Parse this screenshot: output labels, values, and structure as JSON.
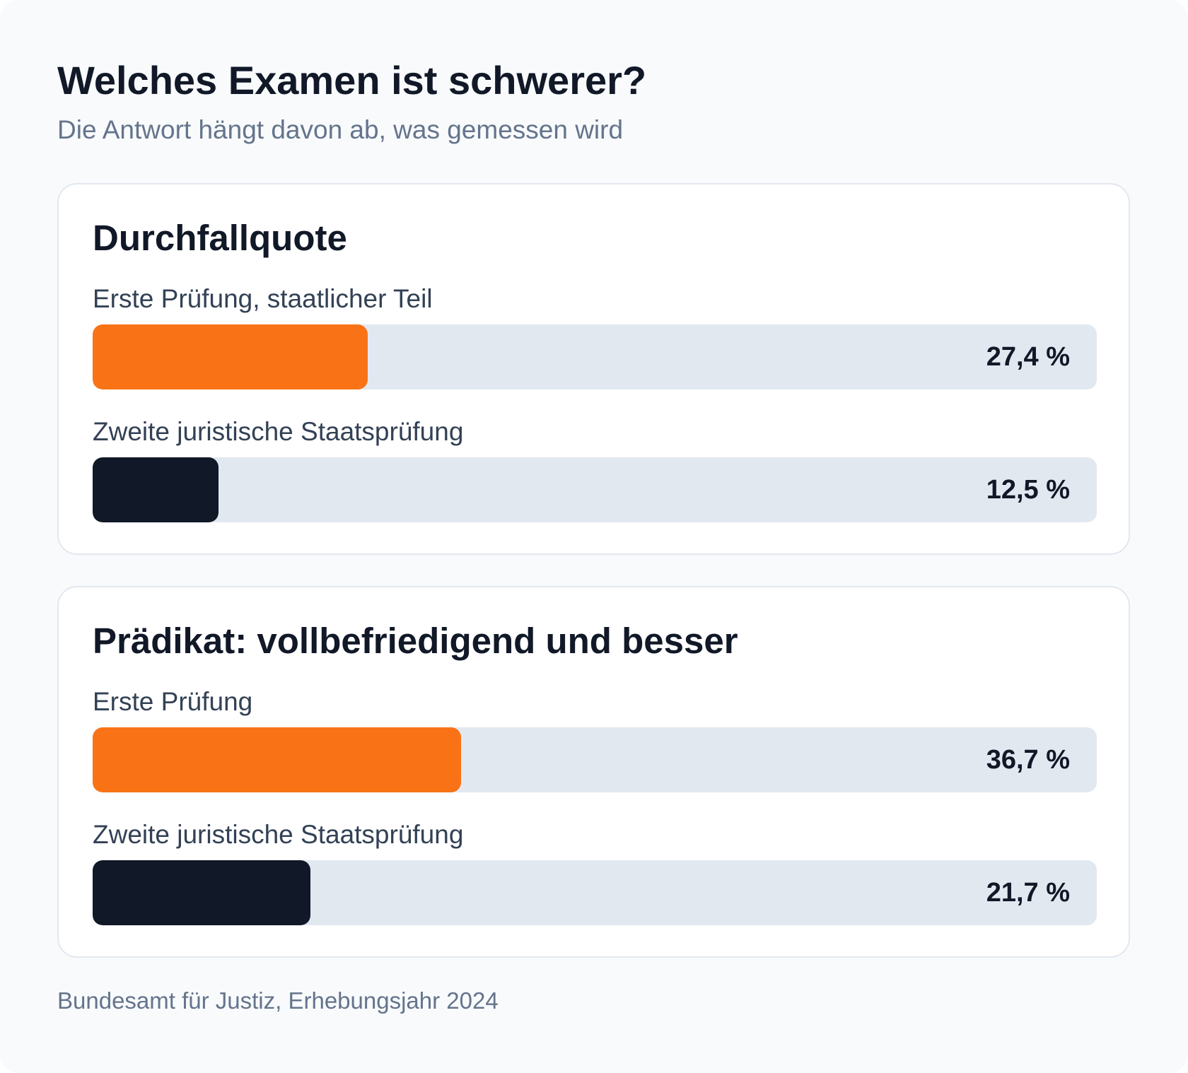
{
  "header": {
    "title": "Welches Examen ist schwerer?",
    "subtitle": "Die Antwort hängt davon ab, was gemessen wird"
  },
  "colors": {
    "first_exam": "#f97316",
    "second_exam": "#111827",
    "track": "#e2e8f0"
  },
  "chart_data": [
    {
      "type": "bar",
      "title": "Durchfallquote",
      "categories": [
        "Erste Prüfung, staatlicher Teil",
        "Zweite juristische Staatsprüfung"
      ],
      "values": [
        27.4,
        12.5
      ],
      "value_labels": [
        "27,4 %",
        "12,5 %"
      ],
      "unit": "%",
      "xlim": [
        0,
        100
      ],
      "orientation": "horizontal"
    },
    {
      "type": "bar",
      "title": "Prädikat: vollbefriedigend und besser",
      "categories": [
        "Erste Prüfung",
        "Zweite juristische Staatsprüfung"
      ],
      "values": [
        36.7,
        21.7
      ],
      "value_labels": [
        "36,7 %",
        "21,7 %"
      ],
      "unit": "%",
      "xlim": [
        0,
        100
      ],
      "orientation": "horizontal"
    }
  ],
  "footer": {
    "source": "Bundesamt für Justiz, Erhebungsjahr 2024"
  }
}
